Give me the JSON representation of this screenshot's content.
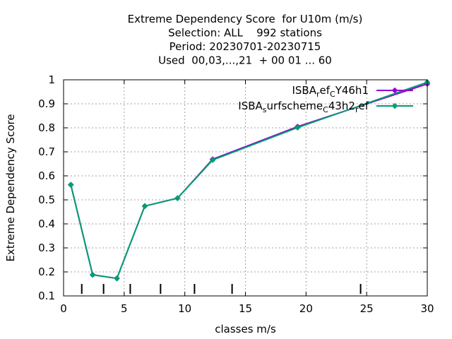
{
  "chart_data": {
    "type": "line",
    "title_lines": [
      "Extreme Dependency Score  for U10m (m/s)",
      "Selection: ALL    992 stations",
      "Period: 20230701-20230715",
      "Used  00,03,...,21  + 00 01 ... 60"
    ],
    "xlabel": "classes m/s",
    "ylabel": "Extreme Dependency Score",
    "xlim": [
      0,
      30
    ],
    "ylim": [
      0.1,
      1.0
    ],
    "x_ticks": [
      0,
      5,
      10,
      15,
      20,
      25,
      30
    ],
    "y_ticks": [
      0.1,
      0.2,
      0.3,
      0.4,
      0.5,
      0.6,
      0.7,
      0.8,
      0.9,
      1.0
    ],
    "y_tick_labels": [
      "0.1",
      "0.2",
      "0.3",
      "0.4",
      "0.5",
      "0.6",
      "0.7",
      "0.8",
      "0.9",
      "1"
    ],
    "class_markers": [
      1.5,
      3.3,
      5.5,
      8.0,
      10.8,
      13.9,
      24.5
    ],
    "grid": true,
    "legend_position": "top-right",
    "series": [
      {
        "name_parts": [
          {
            "t": "ISBA"
          },
          {
            "t": "r",
            "sub": true
          },
          {
            "t": "ef"
          },
          {
            "t": "C",
            "sub": true
          },
          {
            "t": "Y46h1"
          }
        ],
        "color": "#9400d3",
        "x": [
          0.6,
          2.4,
          4.4,
          6.7,
          9.4,
          12.3,
          19.3,
          30.0
        ],
        "y": [
          0.563,
          0.188,
          0.173,
          0.474,
          0.507,
          0.669,
          0.805,
          0.983
        ]
      },
      {
        "name_parts": [
          {
            "t": "ISBA"
          },
          {
            "t": "s",
            "sub": true
          },
          {
            "t": "urfscheme"
          },
          {
            "t": "C",
            "sub": true
          },
          {
            "t": "43h2"
          },
          {
            "t": "r",
            "sub": true
          },
          {
            "t": "ef"
          }
        ],
        "color": "#009e73",
        "x": [
          0.6,
          2.4,
          4.4,
          6.7,
          9.4,
          12.3,
          19.3,
          30.0
        ],
        "y": [
          0.563,
          0.188,
          0.173,
          0.474,
          0.507,
          0.666,
          0.801,
          0.99
        ]
      }
    ]
  }
}
